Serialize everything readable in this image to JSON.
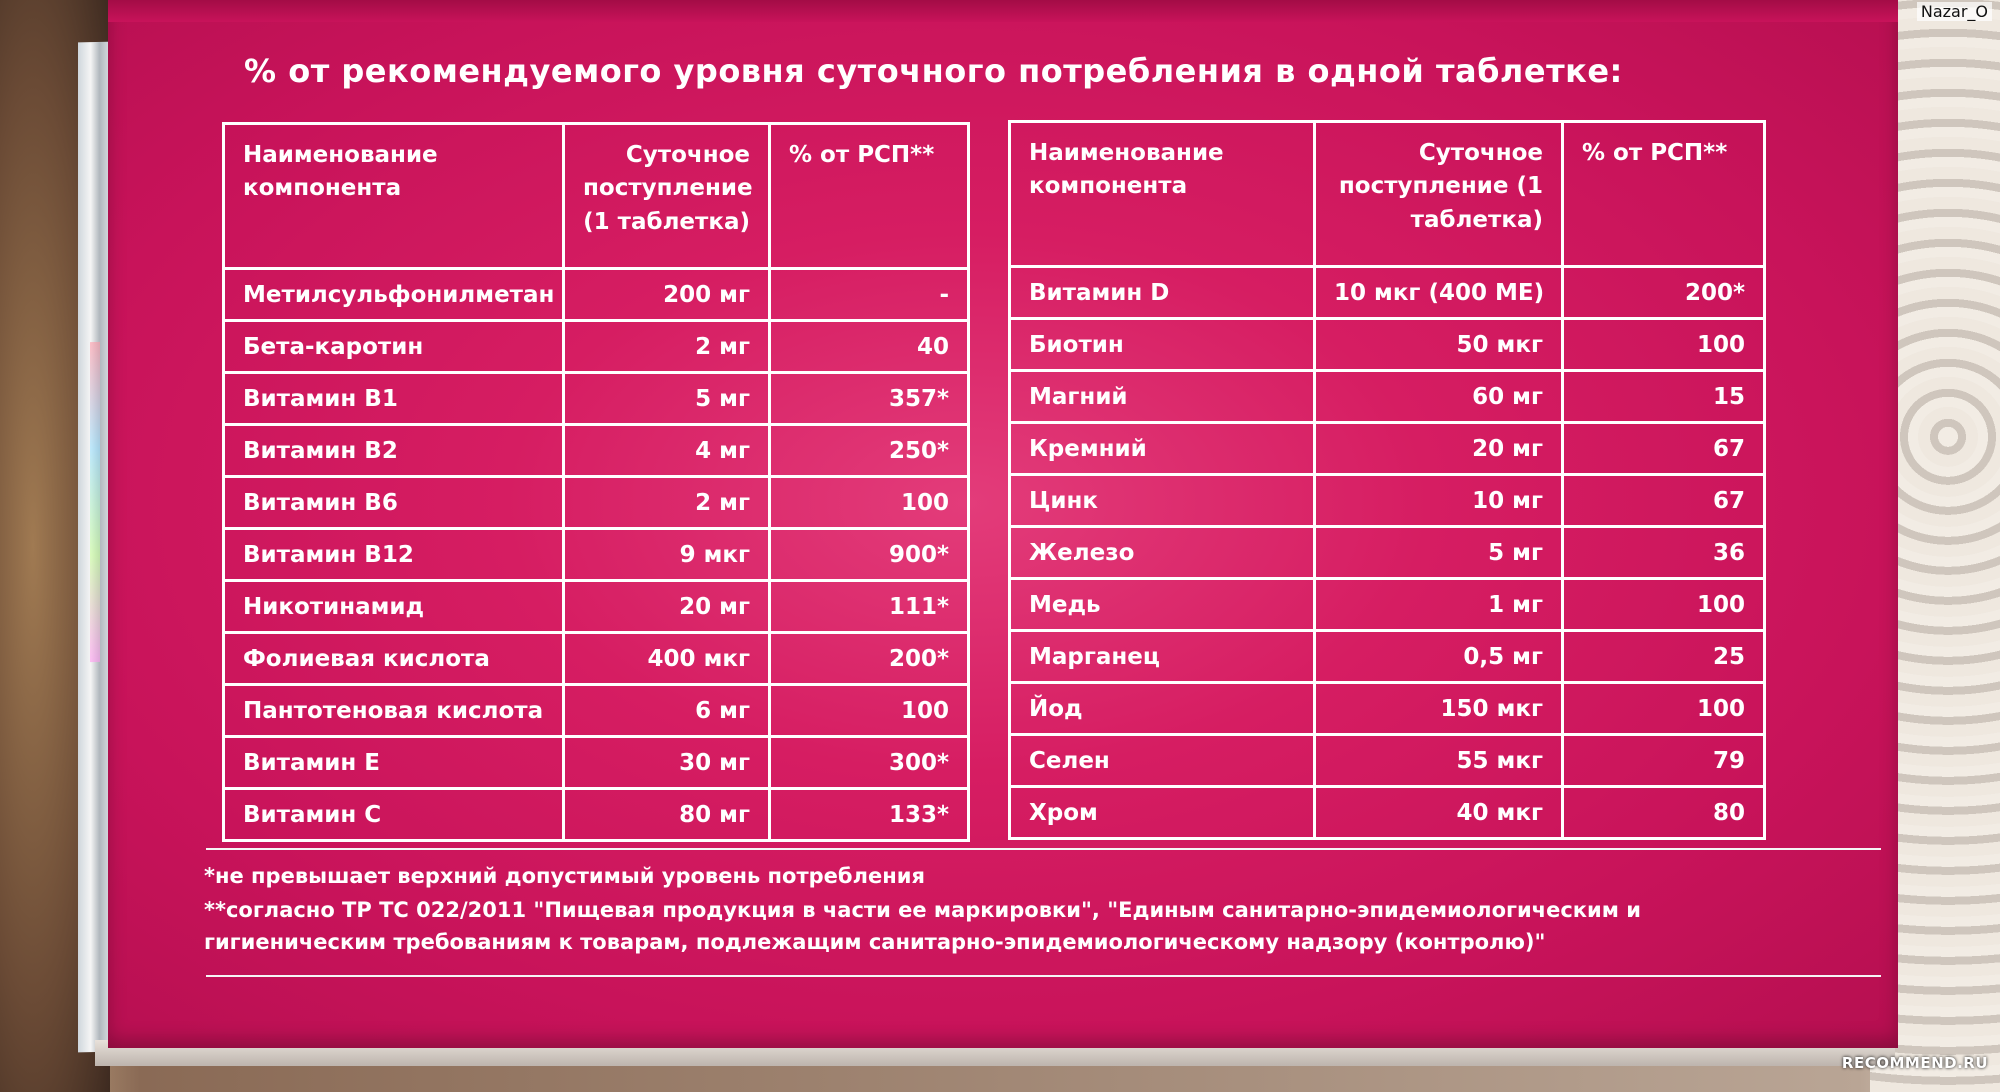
{
  "heading": "% от рекомендуемого уровня суточного потребления в одной таблетке:",
  "table_left": {
    "headers": {
      "name": "Наименование компонента",
      "amount": "Суточное поступление (1 таблетка)",
      "pct": "% от РСП**"
    },
    "rows": [
      {
        "name": "Метилсульфонилметан",
        "amount": "200 мг",
        "pct": "-"
      },
      {
        "name": "Бета-каротин",
        "amount": "2 мг",
        "pct": "40"
      },
      {
        "name": "Витамин В1",
        "amount": "5 мг",
        "pct": "357*"
      },
      {
        "name": "Витамин В2",
        "amount": "4 мг",
        "pct": "250*"
      },
      {
        "name": "Витамин В6",
        "amount": "2 мг",
        "pct": "100"
      },
      {
        "name": "Витамин В12",
        "amount": "9 мкг",
        "pct": "900*"
      },
      {
        "name": "Никотинамид",
        "amount": "20 мг",
        "pct": "111*"
      },
      {
        "name": "Фолиевая кислота",
        "amount": "400 мкг",
        "pct": "200*"
      },
      {
        "name": "Пантотеновая кислота",
        "amount": "6 мг",
        "pct": "100"
      },
      {
        "name": "Витамин Е",
        "amount": "30 мг",
        "pct": "300*"
      },
      {
        "name": "Витамин С",
        "amount": "80 мг",
        "pct": "133*"
      }
    ]
  },
  "table_right": {
    "headers": {
      "name": "Наименование компонента",
      "amount": "Суточное поступление (1 таблетка)",
      "pct": "% от РСП**"
    },
    "rows": [
      {
        "name": "Витамин D",
        "amount": "10 мкг (400 МЕ)",
        "pct": "200*"
      },
      {
        "name": "Биотин",
        "amount": "50 мкг",
        "pct": "100"
      },
      {
        "name": "Магний",
        "amount": "60 мг",
        "pct": "15"
      },
      {
        "name": "Кремний",
        "amount": "20 мг",
        "pct": "67"
      },
      {
        "name": "Цинк",
        "amount": "10 мг",
        "pct": "67"
      },
      {
        "name": "Железо",
        "amount": "5 мг",
        "pct": "36"
      },
      {
        "name": "Медь",
        "amount": "1 мг",
        "pct": "100"
      },
      {
        "name": "Марганец",
        "amount": "0,5 мг",
        "pct": "25"
      },
      {
        "name": "Йод",
        "amount": "150 мкг",
        "pct": "100"
      },
      {
        "name": "Селен",
        "amount": "55 мкг",
        "pct": "79"
      },
      {
        "name": "Хром",
        "amount": "40 мкг",
        "pct": "80"
      }
    ]
  },
  "footnotes": {
    "line1": "*не превышает верхний допустимый уровень потребления",
    "line2": "**согласно ТР ТС 022/2011 \"Пищевая продукция в части ее маркировки\", \"Единым санитарно-эпидемиологическим и",
    "line3": "гигиеническим требованиям к товарам, подлежащим санитарно-эпидемиологическому надзору (контролю)\""
  },
  "watermark_user": "Nazar_O",
  "watermark_site": "RECOMMEND.RU",
  "colors": {
    "box_pink": "#d61d62",
    "lines": "#ffffff"
  }
}
